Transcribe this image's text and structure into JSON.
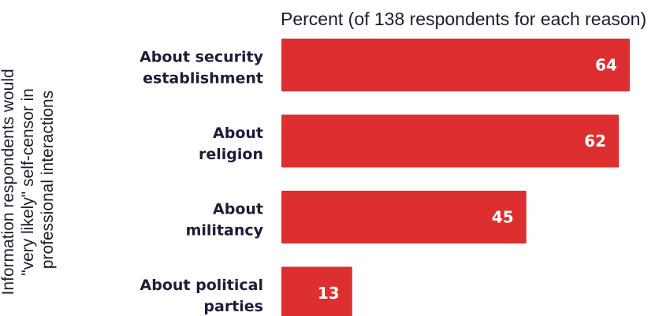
{
  "chart_data": {
    "type": "bar",
    "orientation": "horizontal",
    "title": "Percent (of 138 respondents for each reason)",
    "ylabel": "Information respondents would \"very likely\" self-censor in professional interactions",
    "categories": [
      "About security establishment",
      "About religion",
      "About militancy",
      "About political parties"
    ],
    "values": [
      64,
      62,
      45,
      13
    ],
    "xlim": [
      0,
      64
    ],
    "grid": false,
    "bar_color": "#dd2f2f",
    "value_label_color": "#ffffff"
  }
}
